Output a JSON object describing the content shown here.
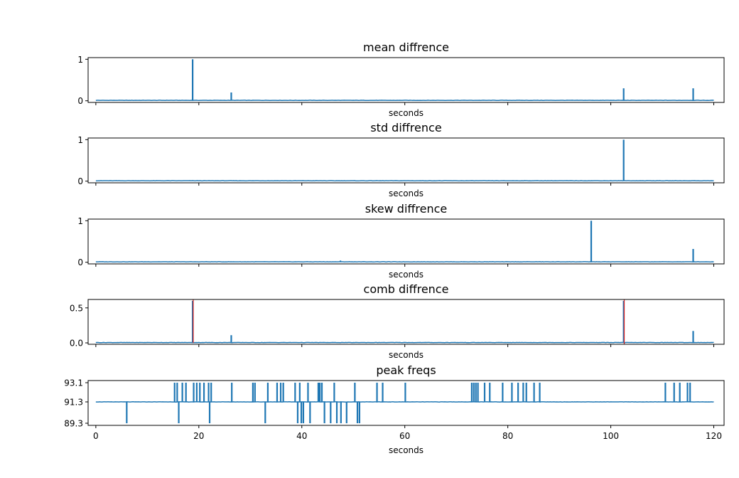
{
  "chart_data": [
    {
      "type": "line",
      "title": "mean diffrence",
      "xlabel": "seconds",
      "ylabel": "",
      "xlim": [
        -1.5,
        122
      ],
      "ylim": [
        -0.04,
        1.04
      ],
      "yticks": [
        0,
        1
      ],
      "ytick_labels": [
        "0",
        "1"
      ],
      "xticks": [
        0,
        20,
        40,
        60,
        80,
        100,
        120
      ],
      "xtick_labels_visible": false,
      "series": [
        {
          "color": "#1f77b4",
          "baseline": 0.01,
          "spikes": [
            {
              "x": 18.8,
              "y": 1.0
            },
            {
              "x": 26.3,
              "y": 0.2
            },
            {
              "x": 102.5,
              "y": 0.3
            },
            {
              "x": 116.0,
              "y": 0.3
            }
          ]
        }
      ],
      "markers": []
    },
    {
      "type": "line",
      "title": "std diffrence",
      "xlabel": "seconds",
      "ylabel": "",
      "xlim": [
        -1.5,
        122
      ],
      "ylim": [
        -0.04,
        1.04
      ],
      "yticks": [
        0,
        1
      ],
      "ytick_labels": [
        "0",
        "1"
      ],
      "xticks": [
        0,
        20,
        40,
        60,
        80,
        100,
        120
      ],
      "xtick_labels_visible": false,
      "series": [
        {
          "color": "#1f77b4",
          "baseline": 0.01,
          "spikes": [
            {
              "x": 102.5,
              "y": 1.0
            }
          ]
        }
      ],
      "markers": []
    },
    {
      "type": "line",
      "title": "skew diffrence",
      "xlabel": "seconds",
      "ylabel": "",
      "xlim": [
        -1.5,
        122
      ],
      "ylim": [
        -0.04,
        1.04
      ],
      "yticks": [
        0,
        1
      ],
      "ytick_labels": [
        "0",
        "1"
      ],
      "xticks": [
        0,
        20,
        40,
        60,
        80,
        100,
        120
      ],
      "xtick_labels_visible": false,
      "series": [
        {
          "color": "#1f77b4",
          "baseline": 0.01,
          "spikes": [
            {
              "x": 47.5,
              "y": 0.04
            },
            {
              "x": 96.2,
              "y": 1.0
            },
            {
              "x": 116.0,
              "y": 0.32
            }
          ]
        }
      ],
      "markers": []
    },
    {
      "type": "line",
      "title": "comb diffrence",
      "xlabel": "seconds",
      "ylabel": "",
      "xlim": [
        -1.5,
        122
      ],
      "ylim": [
        -0.02,
        0.62
      ],
      "yticks": [
        0,
        0.5
      ],
      "ytick_labels": [
        "0.0",
        "0.5"
      ],
      "xticks": [
        0,
        20,
        40,
        60,
        80,
        100,
        120
      ],
      "xtick_labels_visible": false,
      "series": [
        {
          "color": "#1f77b4",
          "baseline": 0.005,
          "spikes": [
            {
              "x": 18.8,
              "y": 0.6
            },
            {
              "x": 26.3,
              "y": 0.11
            },
            {
              "x": 102.5,
              "y": 0.6
            },
            {
              "x": 116.0,
              "y": 0.17
            }
          ]
        }
      ],
      "markers": [
        {
          "x": 18.8,
          "y0": 0.0,
          "y1": 0.62,
          "color": "#d62728"
        },
        {
          "x": 102.5,
          "y0": -0.02,
          "y1": 0.62,
          "color": "#d62728"
        }
      ]
    },
    {
      "type": "line",
      "title": "peak freqs",
      "xlabel": "seconds",
      "ylabel": "",
      "xlim": [
        -1.5,
        122
      ],
      "ylim": [
        89.1,
        93.3
      ],
      "yticks": [
        89.3,
        91.3,
        93.1
      ],
      "ytick_labels": [
        "89.3",
        "91.3",
        "93.1"
      ],
      "xticks": [
        0,
        20,
        40,
        60,
        80,
        100,
        120
      ],
      "xtick_labels": [
        "0",
        "20",
        "40",
        "60",
        "80",
        "100",
        "120"
      ],
      "xtick_labels_visible": true,
      "series": [
        {
          "color": "#1f77b4",
          "baseline": 91.3,
          "spikes": [
            {
              "x": 6.0,
              "y": 89.3
            },
            {
              "x": 15.3,
              "y": 93.1
            },
            {
              "x": 15.8,
              "y": 93.1
            },
            {
              "x": 16.1,
              "y": 89.3
            },
            {
              "x": 16.8,
              "y": 93.1
            },
            {
              "x": 17.5,
              "y": 93.1
            },
            {
              "x": 19.0,
              "y": 93.1
            },
            {
              "x": 19.6,
              "y": 93.1
            },
            {
              "x": 20.2,
              "y": 93.1
            },
            {
              "x": 21.0,
              "y": 93.1
            },
            {
              "x": 21.9,
              "y": 93.1
            },
            {
              "x": 22.1,
              "y": 89.3
            },
            {
              "x": 22.4,
              "y": 93.1
            },
            {
              "x": 26.4,
              "y": 93.1
            },
            {
              "x": 30.5,
              "y": 93.1
            },
            {
              "x": 30.9,
              "y": 93.1
            },
            {
              "x": 32.9,
              "y": 89.3
            },
            {
              "x": 33.4,
              "y": 93.1
            },
            {
              "x": 35.2,
              "y": 93.1
            },
            {
              "x": 35.9,
              "y": 93.1
            },
            {
              "x": 36.4,
              "y": 93.1
            },
            {
              "x": 38.7,
              "y": 93.1
            },
            {
              "x": 39.2,
              "y": 89.3
            },
            {
              "x": 39.6,
              "y": 93.1
            },
            {
              "x": 39.9,
              "y": 89.3
            },
            {
              "x": 40.3,
              "y": 89.3
            },
            {
              "x": 41.2,
              "y": 93.1
            },
            {
              "x": 41.6,
              "y": 89.3
            },
            {
              "x": 43.2,
              "y": 93.1
            },
            {
              "x": 43.5,
              "y": 93.1
            },
            {
              "x": 43.9,
              "y": 93.1
            },
            {
              "x": 44.4,
              "y": 89.3
            },
            {
              "x": 45.6,
              "y": 89.3
            },
            {
              "x": 46.3,
              "y": 93.1
            },
            {
              "x": 46.8,
              "y": 89.3
            },
            {
              "x": 47.6,
              "y": 89.3
            },
            {
              "x": 48.7,
              "y": 89.3
            },
            {
              "x": 50.3,
              "y": 93.1
            },
            {
              "x": 50.8,
              "y": 89.3
            },
            {
              "x": 51.2,
              "y": 89.3
            },
            {
              "x": 54.6,
              "y": 93.1
            },
            {
              "x": 55.7,
              "y": 93.1
            },
            {
              "x": 60.1,
              "y": 93.1
            },
            {
              "x": 73.0,
              "y": 93.1
            },
            {
              "x": 73.4,
              "y": 93.1
            },
            {
              "x": 73.8,
              "y": 93.1
            },
            {
              "x": 74.2,
              "y": 93.1
            },
            {
              "x": 75.5,
              "y": 93.1
            },
            {
              "x": 76.5,
              "y": 93.1
            },
            {
              "x": 79.0,
              "y": 93.1
            },
            {
              "x": 80.8,
              "y": 93.1
            },
            {
              "x": 82.0,
              "y": 93.1
            },
            {
              "x": 83.0,
              "y": 93.1
            },
            {
              "x": 83.6,
              "y": 93.1
            },
            {
              "x": 85.1,
              "y": 93.1
            },
            {
              "x": 86.2,
              "y": 93.1
            },
            {
              "x": 110.6,
              "y": 93.1
            },
            {
              "x": 112.3,
              "y": 93.1
            },
            {
              "x": 113.4,
              "y": 93.1
            },
            {
              "x": 114.9,
              "y": 93.1
            },
            {
              "x": 115.4,
              "y": 93.1
            }
          ]
        }
      ],
      "markers": []
    }
  ]
}
